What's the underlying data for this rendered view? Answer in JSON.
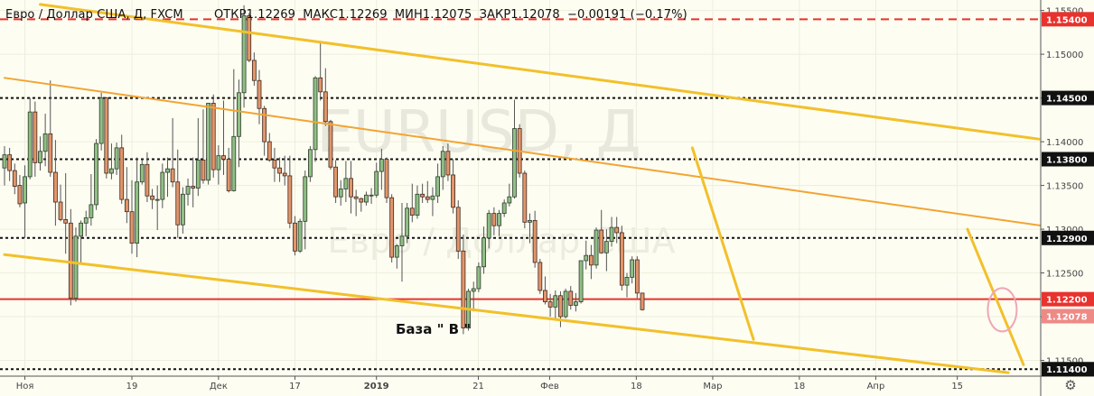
{
  "header": {
    "symbol": "Евро / Доллар США, Д, FXCM",
    "open_label": "ОТКР",
    "open": "1.12269",
    "high_label": "МАКС",
    "high": "1.12269",
    "low_label": "МИН",
    "low": "1.12075",
    "close_label": "ЗАКР",
    "close": "1.12078",
    "change": "−0.00191 (−0.17%)"
  },
  "watermark": {
    "ticker": "EURUSD, Д",
    "name": "Евро / Доллар США"
  },
  "annotation": "База \" В \"",
  "settings_icon": "gear-icon",
  "chart_data": {
    "type": "candlestick",
    "ylim": [
      1.1132,
      1.1562
    ],
    "xlim": [
      0,
      124
    ],
    "y_ticks": [
      {
        "value": 1.155,
        "label": "1.15500"
      },
      {
        "value": 1.15,
        "label": "1.15000"
      },
      {
        "value": 1.145,
        "label": "1.14500"
      },
      {
        "value": 1.14,
        "label": "1.14000"
      },
      {
        "value": 1.135,
        "label": "1.13500"
      },
      {
        "value": 1.13,
        "label": "1.13000"
      },
      {
        "value": 1.125,
        "label": "1.12500"
      },
      {
        "value": 1.12,
        "label": "1.12000"
      },
      {
        "value": 1.115,
        "label": "1.11500"
      }
    ],
    "x_ticks": [
      {
        "bar": 4,
        "label": "Ноя",
        "bold": false
      },
      {
        "bar": 25,
        "label": "19",
        "bold": false
      },
      {
        "bar": 42,
        "label": "Дек",
        "bold": false
      },
      {
        "bar": 57,
        "label": "17",
        "bold": false
      },
      {
        "bar": 73,
        "label": "2019",
        "bold": true
      },
      {
        "bar": 93,
        "label": "21",
        "bold": false
      },
      {
        "bar": 107,
        "label": "Фев",
        "bold": false
      },
      {
        "bar": 124,
        "label": "18",
        "bold": false
      },
      {
        "bar": 139,
        "label": "Мар",
        "bold": false
      },
      {
        "bar": 156,
        "label": "18",
        "bold": false
      },
      {
        "bar": 171,
        "label": "Апр",
        "bold": false
      },
      {
        "bar": 187,
        "label": "15",
        "bold": false
      }
    ],
    "levels": [
      {
        "value": 1.154,
        "label": "1.15400",
        "color": "#e8322e",
        "style": "dashed",
        "label_bg": "#e8322e"
      },
      {
        "value": 1.145,
        "label": "1.14500",
        "color": "#111111",
        "style": "dotted",
        "label_bg": "#111111"
      },
      {
        "value": 1.138,
        "label": "1.13800",
        "color": "#111111",
        "style": "dotted",
        "label_bg": "#111111"
      },
      {
        "value": 1.129,
        "label": "1.12900",
        "color": "#111111",
        "style": "dotted",
        "label_bg": "#111111"
      },
      {
        "value": 1.122,
        "label": "1.12200",
        "color": "#e8322e",
        "style": "solid",
        "label_bg": "#e8322e"
      },
      {
        "value": 1.114,
        "label": "1.11400",
        "color": "#111111",
        "style": "dotted",
        "label_bg": "#111111"
      }
    ],
    "last_price": {
      "value": 1.12078,
      "label": "1.12078",
      "color": "#ee8a86"
    },
    "trendlines": [
      {
        "from": [
          7,
          1.1557
        ],
        "to": [
          203,
          1.1403
        ],
        "color": "#f2c02a",
        "width": 3
      },
      {
        "from": [
          0,
          1.1473
        ],
        "to": [
          218,
          1.1292
        ],
        "color": "#f2a432",
        "width": 2
      },
      {
        "from": [
          0,
          1.1271
        ],
        "to": [
          197,
          1.1136
        ],
        "color": "#f2c02a",
        "width": 3
      },
      {
        "from": [
          135,
          1.1393
        ],
        "to": [
          147,
          1.1174
        ],
        "color": "#f2c02a",
        "width": 3
      },
      {
        "from": [
          189,
          1.13
        ],
        "to": [
          200,
          1.1145
        ],
        "color": "#f2c02a",
        "width": 3
      }
    ],
    "circle": {
      "bar": 196,
      "value": 1.1212,
      "color": "#f0a6b5"
    },
    "colors": {
      "up": "#8fbf85",
      "down": "#e2956a",
      "up_border": "#2f3d2c",
      "down_border": "#3d2a20",
      "wick": "#555555"
    },
    "candles": [
      [
        1.137,
        1.1395,
        1.135,
        1.1385
      ],
      [
        1.1385,
        1.1393,
        1.1355,
        1.1367
      ],
      [
        1.1367,
        1.1375,
        1.134,
        1.1349
      ],
      [
        1.135,
        1.1362,
        1.1325,
        1.1329
      ],
      [
        1.133,
        1.1373,
        1.129,
        1.136
      ],
      [
        1.136,
        1.145,
        1.1357,
        1.1434
      ],
      [
        1.1434,
        1.1446,
        1.136,
        1.1376
      ],
      [
        1.1376,
        1.1406,
        1.1367,
        1.1389
      ],
      [
        1.1389,
        1.1432,
        1.1372,
        1.1409
      ],
      [
        1.1409,
        1.147,
        1.136,
        1.1365
      ],
      [
        1.1365,
        1.1402,
        1.1304,
        1.1331
      ],
      [
        1.1331,
        1.1351,
        1.1309,
        1.1311
      ],
      [
        1.1311,
        1.1364,
        1.1272,
        1.1307
      ],
      [
        1.1307,
        1.1323,
        1.1213,
        1.1221
      ],
      [
        1.1221,
        1.1302,
        1.1217,
        1.1292
      ],
      [
        1.1292,
        1.131,
        1.1262,
        1.1307
      ],
      [
        1.1307,
        1.1321,
        1.1292,
        1.1313
      ],
      [
        1.1313,
        1.1363,
        1.1304,
        1.1328
      ],
      [
        1.1328,
        1.1403,
        1.1322,
        1.1398
      ],
      [
        1.1398,
        1.1456,
        1.139,
        1.145
      ],
      [
        1.145,
        1.1451,
        1.1358,
        1.1364
      ],
      [
        1.1364,
        1.1398,
        1.1357,
        1.1369
      ],
      [
        1.1369,
        1.1399,
        1.1362,
        1.1393
      ],
      [
        1.1393,
        1.1408,
        1.1329,
        1.1334
      ],
      [
        1.1334,
        1.1371,
        1.1307,
        1.132
      ],
      [
        1.132,
        1.1356,
        1.1272,
        1.1284
      ],
      [
        1.1284,
        1.1382,
        1.1268,
        1.1354
      ],
      [
        1.1354,
        1.138,
        1.1351,
        1.1374
      ],
      [
        1.1374,
        1.1388,
        1.1331,
        1.1338
      ],
      [
        1.1338,
        1.1346,
        1.1323,
        1.1334
      ],
      [
        1.1334,
        1.135,
        1.1299,
        1.1334
      ],
      [
        1.1334,
        1.1375,
        1.1324,
        1.1365
      ],
      [
        1.1365,
        1.1382,
        1.1337,
        1.1369
      ],
      [
        1.1369,
        1.1427,
        1.1348,
        1.1354
      ],
      [
        1.1354,
        1.1391,
        1.129,
        1.1305
      ],
      [
        1.1305,
        1.1348,
        1.1295,
        1.134
      ],
      [
        1.134,
        1.1358,
        1.1327,
        1.1349
      ],
      [
        1.1349,
        1.1382,
        1.1325,
        1.1347
      ],
      [
        1.1347,
        1.1427,
        1.1338,
        1.1379
      ],
      [
        1.1379,
        1.1437,
        1.1352,
        1.1356
      ],
      [
        1.1356,
        1.1444,
        1.1351,
        1.1444
      ],
      [
        1.1444,
        1.1454,
        1.1359,
        1.1368
      ],
      [
        1.1368,
        1.1396,
        1.1351,
        1.1384
      ],
      [
        1.1384,
        1.1447,
        1.1362,
        1.138
      ],
      [
        1.138,
        1.1393,
        1.1342,
        1.1344
      ],
      [
        1.1344,
        1.1483,
        1.1343,
        1.1406
      ],
      [
        1.1406,
        1.1471,
        1.1371,
        1.1456
      ],
      [
        1.1456,
        1.1556,
        1.1439,
        1.1544
      ],
      [
        1.1544,
        1.1547,
        1.1491,
        1.1493
      ],
      [
        1.1493,
        1.1502,
        1.1464,
        1.147
      ],
      [
        1.147,
        1.1482,
        1.142,
        1.1438
      ],
      [
        1.1438,
        1.1441,
        1.1384,
        1.14
      ],
      [
        1.14,
        1.141,
        1.1377,
        1.1379
      ],
      [
        1.1379,
        1.1393,
        1.1354,
        1.137
      ],
      [
        1.137,
        1.1382,
        1.1354,
        1.1364
      ],
      [
        1.1364,
        1.1384,
        1.135,
        1.1361
      ],
      [
        1.1361,
        1.1384,
        1.1301,
        1.1307
      ],
      [
        1.1307,
        1.1315,
        1.127,
        1.1275
      ],
      [
        1.1275,
        1.1312,
        1.1273,
        1.1309
      ],
      [
        1.1309,
        1.1367,
        1.1277,
        1.136
      ],
      [
        1.136,
        1.1395,
        1.1354,
        1.1391
      ],
      [
        1.1391,
        1.1475,
        1.1377,
        1.1473
      ],
      [
        1.1473,
        1.1513,
        1.1447,
        1.1457
      ],
      [
        1.1457,
        1.1484,
        1.1418,
        1.1423
      ],
      [
        1.1423,
        1.1425,
        1.1368,
        1.1371
      ],
      [
        1.1371,
        1.1379,
        1.133,
        1.1337
      ],
      [
        1.1337,
        1.1356,
        1.1327,
        1.1346
      ],
      [
        1.1346,
        1.1378,
        1.1331,
        1.1358
      ],
      [
        1.1358,
        1.1378,
        1.1318,
        1.1337
      ],
      [
        1.1337,
        1.1345,
        1.1315,
        1.1335
      ],
      [
        1.1335,
        1.1336,
        1.132,
        1.1331
      ],
      [
        1.1331,
        1.1343,
        1.1327,
        1.1339
      ],
      [
        1.1339,
        1.1347,
        1.1329,
        1.1339
      ],
      [
        1.1339,
        1.1376,
        1.1336,
        1.1366
      ],
      [
        1.1366,
        1.1392,
        1.1345,
        1.138
      ]
    ]
  }
}
